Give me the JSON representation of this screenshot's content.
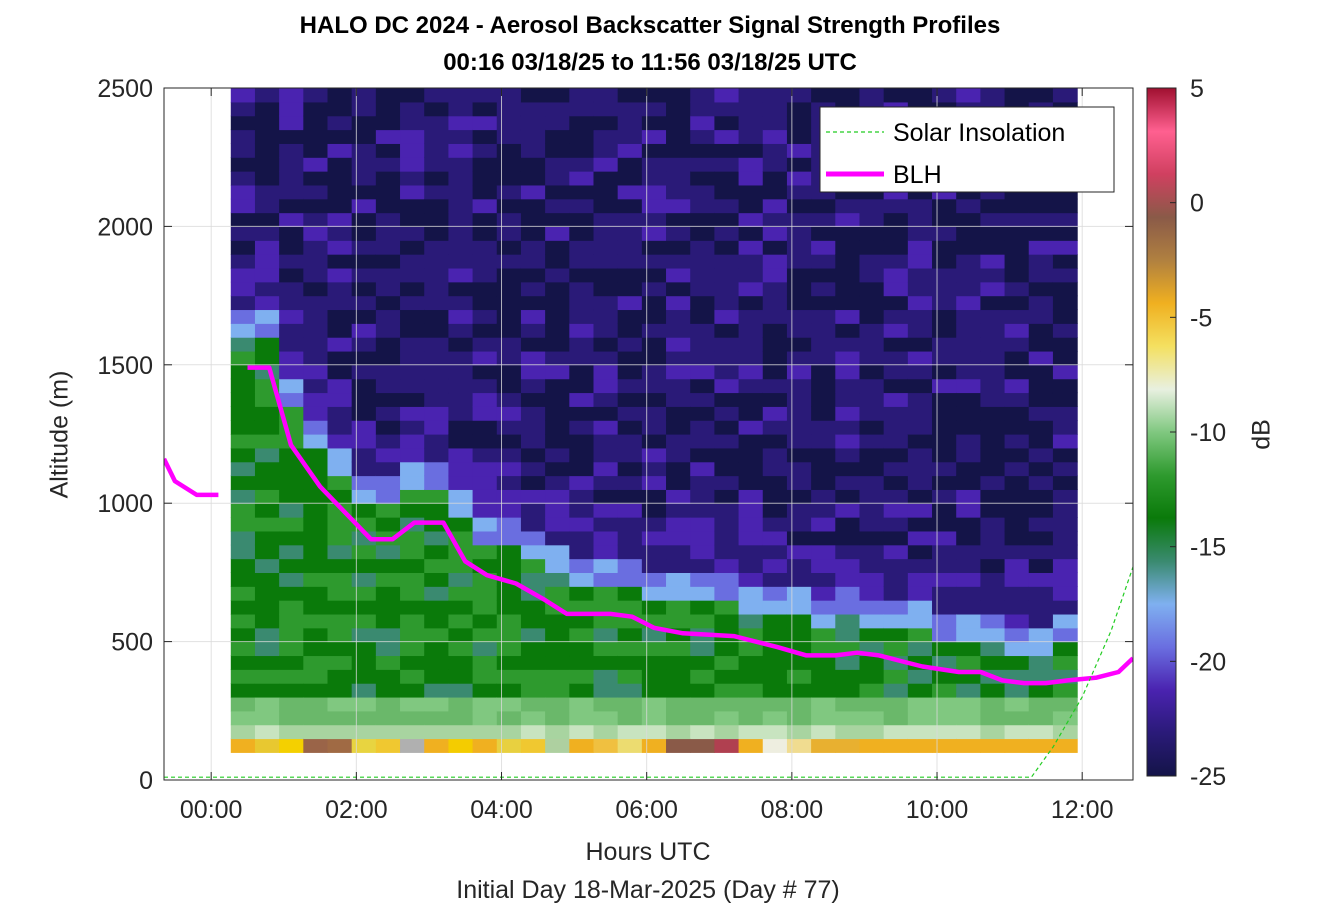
{
  "chart_data": {
    "type": "heatmap",
    "title": "HALO DC 2024 - Aerosol Backscatter Signal Strength Profiles",
    "subtitle": "00:16 03/18/25 to 11:56 03/18/25  UTC",
    "xlabel": "Hours UTC",
    "footnote": "Initial Day 18-Mar-2025 (Day # 77)",
    "ylabel": "Altitude (m)",
    "colorbar_label": "dB",
    "xlim": [
      -0.65,
      12.7
    ],
    "ylim": [
      0,
      2500
    ],
    "x_ticks": [
      0,
      2,
      4,
      6,
      8,
      10,
      12
    ],
    "x_tick_labels": [
      "00:00",
      "02:00",
      "04:00",
      "06:00",
      "08:00",
      "10:00",
      "12:00"
    ],
    "y_ticks": [
      0,
      500,
      1000,
      1500,
      2000,
      2500
    ],
    "y_tick_labels": [
      "0",
      "500",
      "1000",
      "1500",
      "2000",
      "2500"
    ],
    "colorbar_range": [
      -25,
      5
    ],
    "colorbar_ticks": [
      5,
      0,
      -5,
      -10,
      -15,
      -20,
      -25
    ],
    "colorbar_tick_labels": [
      "5",
      "0",
      "-5",
      "-10",
      "-15",
      "-20",
      "-25"
    ],
    "colormap": [
      "#141448",
      "#2a1a78",
      "#4a23b0",
      "#6a6ee0",
      "#7fb0f0",
      "#3a8a70",
      "#0a7a0a",
      "#2e9a2e",
      "#80c880",
      "#e8f0e0",
      "#f4e060",
      "#f0b020",
      "#b08040",
      "#8a5a48",
      "#d04060",
      "#ff6090",
      "#a01030"
    ],
    "heatmap_extent": {
      "x_start": 0.27,
      "x_end": 11.93,
      "y_start": 100,
      "y_end": 2500
    },
    "grid": true,
    "legend": {
      "placement": "top-right",
      "entries": [
        {
          "name": "Solar Insolation",
          "color": "#22cc22",
          "style": "dashed"
        },
        {
          "name": "BLH",
          "color": "#ff00ff",
          "style": "solid"
        }
      ]
    },
    "series": [
      {
        "name": "BLH",
        "color": "#ff00ff",
        "segments": [
          {
            "x": [
              -0.65,
              -0.5,
              -0.2,
              0.1
            ],
            "y": [
              1160,
              1080,
              1030,
              1030
            ]
          },
          {
            "x": [
              0.5,
              0.8,
              1.1,
              1.5,
              2.2,
              2.5,
              2.8,
              3.2,
              3.5,
              3.8,
              4.2,
              4.6,
              4.9,
              5.5,
              5.8,
              6.1,
              6.5,
              7.2,
              7.8,
              8.2,
              8.6,
              8.9,
              9.2,
              9.5,
              9.8,
              10.3,
              10.6,
              10.9,
              11.2,
              11.5,
              11.8,
              12.2,
              12.5,
              12.7
            ],
            "y": [
              1490,
              1490,
              1210,
              1060,
              870,
              870,
              930,
              930,
              790,
              740,
              710,
              650,
              600,
              600,
              590,
              550,
              530,
              520,
              480,
              450,
              450,
              460,
              450,
              430,
              410,
              390,
              390,
              360,
              350,
              350,
              360,
              370,
              390,
              440
            ]
          }
        ]
      },
      {
        "name": "Solar Insolation",
        "color": "#22cc22",
        "x": [
          -0.65,
          11.3,
          11.6,
          12.0,
          12.4,
          12.7
        ],
        "y": [
          10,
          10,
          120,
          300,
          540,
          770
        ]
      }
    ]
  }
}
